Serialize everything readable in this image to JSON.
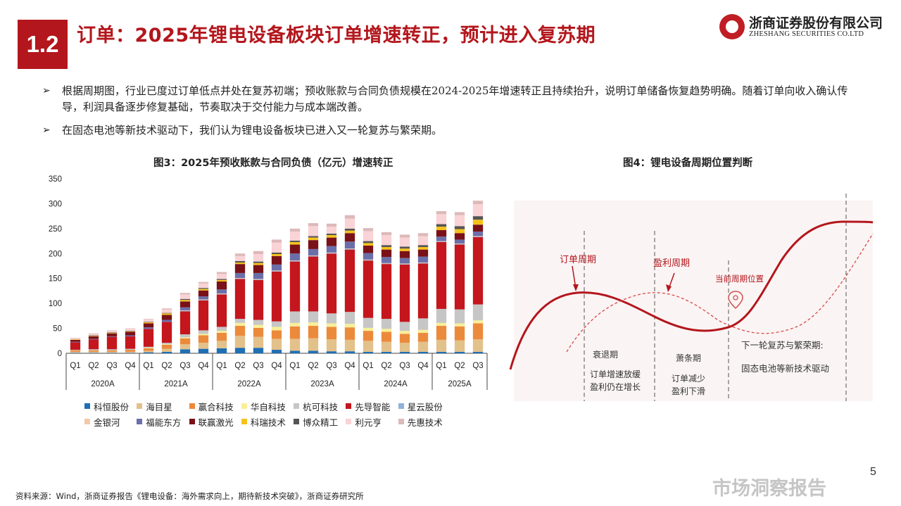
{
  "header": {
    "section_number": "1.2",
    "title": "订单：2025年锂电设备板块订单增速转正，预计进入复苏期",
    "logo_cn": "浙商证券股份有限公司",
    "logo_en": "ZHESHANG SECURITIES CO.LTD",
    "brand_color": "#b3161c"
  },
  "bullets": [
    "根据周期图，行业已度过订单低点并处在复苏初端；预收账款与合同负债规模在2024-2025年增速转正且持续抬升，说明订单储备恢复趋势明确。随着订单向收入确认传导，利润具备逐步修复基础，节奏取决于交付能力与成本端改善。",
    "在固态电池等新技术驱动下，我们认为锂电设备板块已进入又一轮复苏与繁荣期。"
  ],
  "bullet_marker": "➢",
  "figure3": {
    "title": "图3：2025年预收账款与合同负债（亿元）增速转正"
  },
  "figure4": {
    "title": "图4：锂电设备周期位置判断",
    "labels": {
      "order_cycle": "订单周期",
      "profit_cycle": "盈利周期",
      "current_position": "当前周期位置",
      "recession": "衰退期",
      "recession_desc1": "订单增速放缓",
      "recession_desc2": "盈利仍在增长",
      "depression": "萧条期",
      "depression_desc1": "订单减少",
      "depression_desc2": "盈利下滑",
      "next_cycle": "下一轮复苏与繁荣期:",
      "next_cycle_desc": "固态电池等新技术驱动"
    }
  },
  "chart_data": {
    "type": "bar",
    "stacked": true,
    "title": "图3：2025年预收账款与合同负债（亿元）增速转正",
    "ylim": [
      0,
      350
    ],
    "yticks": [
      0,
      50,
      100,
      150,
      200,
      250,
      300,
      350
    ],
    "categories": [
      "Q1",
      "Q2",
      "Q3",
      "Q4",
      "Q1",
      "Q2",
      "Q3",
      "Q4",
      "Q1",
      "Q2",
      "Q3",
      "Q4",
      "Q1",
      "Q2",
      "Q3",
      "Q4",
      "Q1",
      "Q2",
      "Q3",
      "Q4",
      "Q1",
      "Q2",
      "Q3"
    ],
    "year_groups": [
      {
        "label": "2020A",
        "count": 4
      },
      {
        "label": "2021A",
        "count": 4
      },
      {
        "label": "2022A",
        "count": 4
      },
      {
        "label": "2023A",
        "count": 4
      },
      {
        "label": "2024A",
        "count": 4
      },
      {
        "label": "2025A",
        "count": 3
      }
    ],
    "legend_rows": [
      [
        "科恒股份",
        "海目星",
        "赢合科技",
        "华自科技",
        "杭可科技",
        "先导智能",
        "星云股份"
      ],
      [
        "金银河",
        "福能东方",
        "联赢激光",
        "科瑞技术",
        "博众精工",
        "利元亨",
        "先惠技术"
      ]
    ],
    "series": [
      {
        "name": "科恒股份",
        "color": "#1f6fb4",
        "values": [
          1,
          1,
          1,
          1,
          2,
          3,
          8,
          9,
          10,
          11,
          11,
          7,
          5,
          5,
          4,
          4,
          3,
          3,
          3,
          3,
          3,
          3,
          3
        ]
      },
      {
        "name": "海目星",
        "color": "#e3c18a",
        "values": [
          2,
          2,
          2,
          2,
          3,
          6,
          10,
          12,
          15,
          24,
          22,
          22,
          24,
          25,
          24,
          23,
          22,
          20,
          18,
          20,
          24,
          23,
          25
        ]
      },
      {
        "name": "赢合科技",
        "color": "#ec8a3c",
        "values": [
          3,
          3,
          3,
          4,
          5,
          8,
          12,
          15,
          16,
          20,
          18,
          17,
          25,
          25,
          25,
          25,
          20,
          20,
          18,
          18,
          28,
          28,
          32
        ]
      },
      {
        "name": "华自科技",
        "color": "#f8ef98",
        "values": [
          0,
          0,
          0,
          0,
          1,
          1,
          2,
          3,
          4,
          6,
          6,
          7,
          7,
          7,
          7,
          7,
          6,
          6,
          6,
          6,
          6,
          6,
          6
        ]
      },
      {
        "name": "杭可科技",
        "color": "#c6c6c6",
        "values": [
          1,
          2,
          2,
          2,
          2,
          3,
          6,
          7,
          8,
          8,
          10,
          11,
          23,
          22,
          20,
          24,
          20,
          20,
          18,
          23,
          28,
          28,
          32
        ]
      },
      {
        "name": "先导智能",
        "color": "#c4161c",
        "values": [
          15,
          20,
          25,
          25,
          36,
          42,
          46,
          60,
          65,
          80,
          80,
          100,
          100,
          110,
          120,
          125,
          115,
          110,
          115,
          110,
          134,
          130,
          135
        ]
      },
      {
        "name": "星云股份",
        "color": "#8fb1db",
        "values": [
          0,
          0,
          0,
          0,
          0,
          0,
          1,
          1,
          1,
          1,
          1,
          1,
          1,
          1,
          1,
          1,
          1,
          1,
          1,
          1,
          1,
          1,
          1
        ]
      },
      {
        "name": "金银河",
        "color": "#f5c9a7",
        "values": [
          0,
          0,
          0,
          0,
          0,
          0,
          1,
          1,
          1,
          1,
          1,
          1,
          1,
          1,
          1,
          1,
          1,
          1,
          1,
          1,
          1,
          1,
          1
        ]
      },
      {
        "name": "福能东方",
        "color": "#6b6fa9",
        "values": [
          1,
          1,
          1,
          2,
          3,
          4,
          6,
          6,
          8,
          10,
          12,
          12,
          14,
          13,
          13,
          14,
          13,
          12,
          11,
          12,
          9,
          8,
          9
        ]
      },
      {
        "name": "联赢激光",
        "color": "#7a1118",
        "values": [
          4,
          5,
          6,
          7,
          8,
          10,
          12,
          12,
          16,
          18,
          16,
          17,
          18,
          18,
          17,
          17,
          15,
          15,
          14,
          14,
          13,
          13,
          14
        ]
      },
      {
        "name": "科瑞技术",
        "color": "#f5c21b",
        "values": [
          1,
          1,
          1,
          1,
          2,
          3,
          3,
          3,
          3,
          3,
          4,
          4,
          5,
          5,
          5,
          5,
          5,
          5,
          5,
          5,
          7,
          8,
          10
        ]
      },
      {
        "name": "博众精工",
        "color": "#555555",
        "values": [
          0,
          1,
          1,
          1,
          1,
          1,
          2,
          2,
          2,
          3,
          3,
          3,
          3,
          3,
          3,
          4,
          4,
          4,
          4,
          4,
          5,
          6,
          7
        ]
      },
      {
        "name": "利元亨",
        "color": "#f9d3d6",
        "values": [
          2,
          3,
          3,
          4,
          5,
          7,
          9,
          9,
          10,
          10,
          15,
          20,
          18,
          20,
          14,
          20,
          20,
          20,
          18,
          18,
          20,
          22,
          24
        ]
      },
      {
        "name": "先惠技术",
        "color": "#ddb9b9",
        "values": [
          1,
          1,
          1,
          1,
          1,
          2,
          3,
          3,
          4,
          5,
          6,
          6,
          6,
          6,
          6,
          7,
          6,
          6,
          6,
          6,
          6,
          6,
          7
        ]
      }
    ]
  },
  "footer": {
    "source": "资料来源：Wind，浙商证券报告《锂电设备：海外需求向上，期待新技术突破》，浙商证券研究所",
    "page_number": "5",
    "watermark": "市场洞察报告"
  }
}
